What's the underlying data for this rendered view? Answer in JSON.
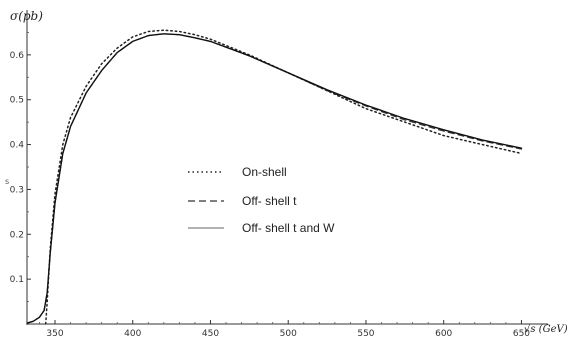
{
  "chart_data": {
    "type": "line",
    "title": "",
    "xlabel": "√s (GeV)",
    "ylabel": "σ(pb)",
    "xlim": [
      332,
      660
    ],
    "ylim": [
      0,
      0.7
    ],
    "x_ticks": [
      "350",
      "400",
      "450",
      "500",
      "550",
      "600",
      "650"
    ],
    "y_ticks": [
      "0.1",
      "0.2",
      "0.3",
      "0.4",
      "0.5",
      "0.6"
    ],
    "x_tick_values": [
      350,
      400,
      450,
      500,
      550,
      600,
      650
    ],
    "y_tick_values": [
      0.1,
      0.2,
      0.3,
      0.4,
      0.5,
      0.6
    ],
    "grid": false,
    "legend_position": "center",
    "stray_mark": "s",
    "series": [
      {
        "name": "On-shell",
        "style": "dotted",
        "color": "#222222",
        "x": [
          344,
          345,
          347,
          350,
          355,
          360,
          370,
          380,
          390,
          400,
          410,
          420,
          430,
          440,
          450,
          475,
          500,
          525,
          550,
          575,
          600,
          625,
          650
        ],
        "y": [
          0.0,
          0.05,
          0.17,
          0.29,
          0.4,
          0.46,
          0.53,
          0.58,
          0.615,
          0.64,
          0.652,
          0.655,
          0.652,
          0.645,
          0.635,
          0.6,
          0.56,
          0.52,
          0.48,
          0.45,
          0.42,
          0.4,
          0.38
        ]
      },
      {
        "name": "Off- shell t",
        "style": "dashed",
        "color": "#333333",
        "x": [
          332,
          336,
          340,
          343,
          345,
          347,
          350,
          355,
          360,
          370,
          380,
          390,
          400,
          410,
          420,
          430,
          440,
          450,
          475,
          500,
          525,
          550,
          575,
          600,
          625,
          650
        ],
        "y": [
          0.002,
          0.006,
          0.015,
          0.03,
          0.07,
          0.16,
          0.27,
          0.38,
          0.44,
          0.515,
          0.565,
          0.605,
          0.63,
          0.643,
          0.647,
          0.645,
          0.638,
          0.63,
          0.598,
          0.56,
          0.52,
          0.486,
          0.455,
          0.43,
          0.408,
          0.39
        ]
      },
      {
        "name": "Off- shell t and W",
        "style": "solid",
        "color": "#111111",
        "x": [
          332,
          336,
          340,
          343,
          345,
          347,
          350,
          355,
          360,
          370,
          380,
          390,
          400,
          410,
          420,
          430,
          440,
          450,
          475,
          500,
          525,
          550,
          575,
          600,
          625,
          650
        ],
        "y": [
          0.002,
          0.006,
          0.015,
          0.03,
          0.07,
          0.16,
          0.27,
          0.38,
          0.44,
          0.515,
          0.565,
          0.605,
          0.63,
          0.643,
          0.647,
          0.645,
          0.638,
          0.63,
          0.598,
          0.56,
          0.522,
          0.488,
          0.458,
          0.433,
          0.41,
          0.392
        ]
      }
    ]
  }
}
